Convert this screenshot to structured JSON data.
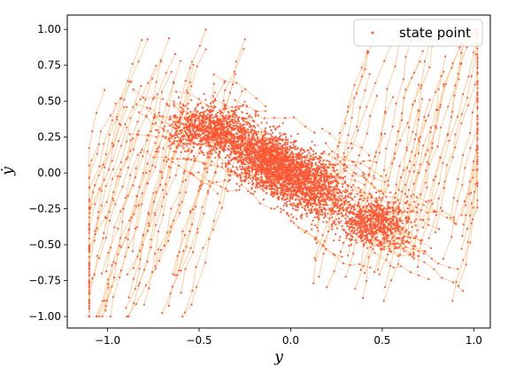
{
  "chart_data": {
    "type": "scatter",
    "xlabel": "y",
    "ylabel": "ẏ",
    "xlim": [
      -1.22,
      1.09
    ],
    "ylim": [
      -1.08,
      1.1
    ],
    "xticks": [
      "−1.0",
      "−0.5",
      "0.0",
      "0.5",
      "1.0"
    ],
    "xtick_values": [
      -1.0,
      -0.5,
      0.0,
      0.5,
      1.0
    ],
    "yticks": [
      "1.00",
      "0.75",
      "0.50",
      "0.25",
      "0.00",
      "−0.25",
      "−0.50",
      "−0.75",
      "−1.00"
    ],
    "ytick_values": [
      1.0,
      0.75,
      0.5,
      0.25,
      0.0,
      -0.25,
      -0.5,
      -0.75,
      -1.0
    ],
    "grid": false,
    "legend": {
      "position": "top-right",
      "entries": [
        {
          "label": "state point",
          "color": "#ff5733"
        }
      ]
    },
    "series": [
      {
        "name": "state point",
        "color": "#ff5733",
        "arrow_color": "#ffc58f"
      }
    ]
  }
}
